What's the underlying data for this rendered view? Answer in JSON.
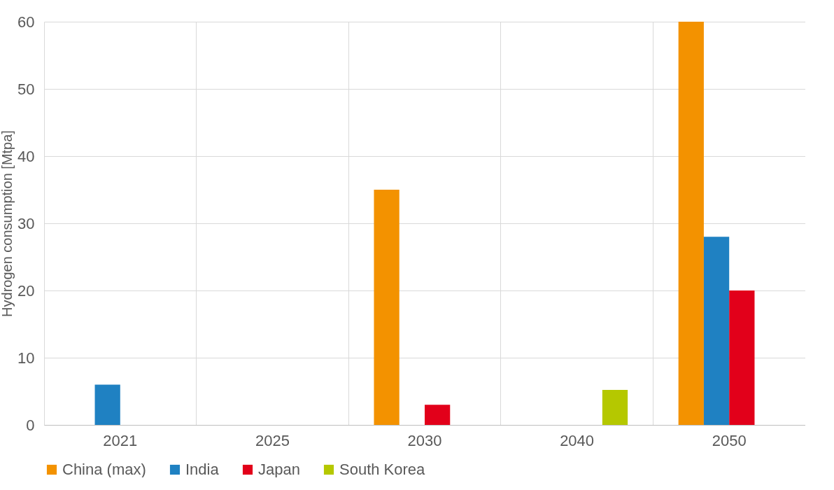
{
  "chart_data": {
    "type": "bar",
    "ylabel": "Hydrogen consumption [Mtpa]",
    "categories": [
      "2021",
      "2025",
      "2030",
      "2040",
      "2050"
    ],
    "series": [
      {
        "name": "China (max)",
        "color": "#f39200",
        "values": [
          null,
          null,
          35,
          null,
          60
        ]
      },
      {
        "name": "India",
        "color": "#1f81c2",
        "values": [
          6,
          null,
          null,
          null,
          28
        ]
      },
      {
        "name": "Japan",
        "color": "#e2001a",
        "values": [
          null,
          null,
          3,
          null,
          20
        ]
      },
      {
        "name": "South Korea",
        "color": "#b5c800",
        "values": [
          null,
          null,
          null,
          5.2,
          null
        ]
      }
    ],
    "ylim": [
      0,
      60
    ],
    "yticks": [
      0,
      10,
      20,
      30,
      40,
      50,
      60
    ],
    "grid": true,
    "legend": "bottom"
  }
}
